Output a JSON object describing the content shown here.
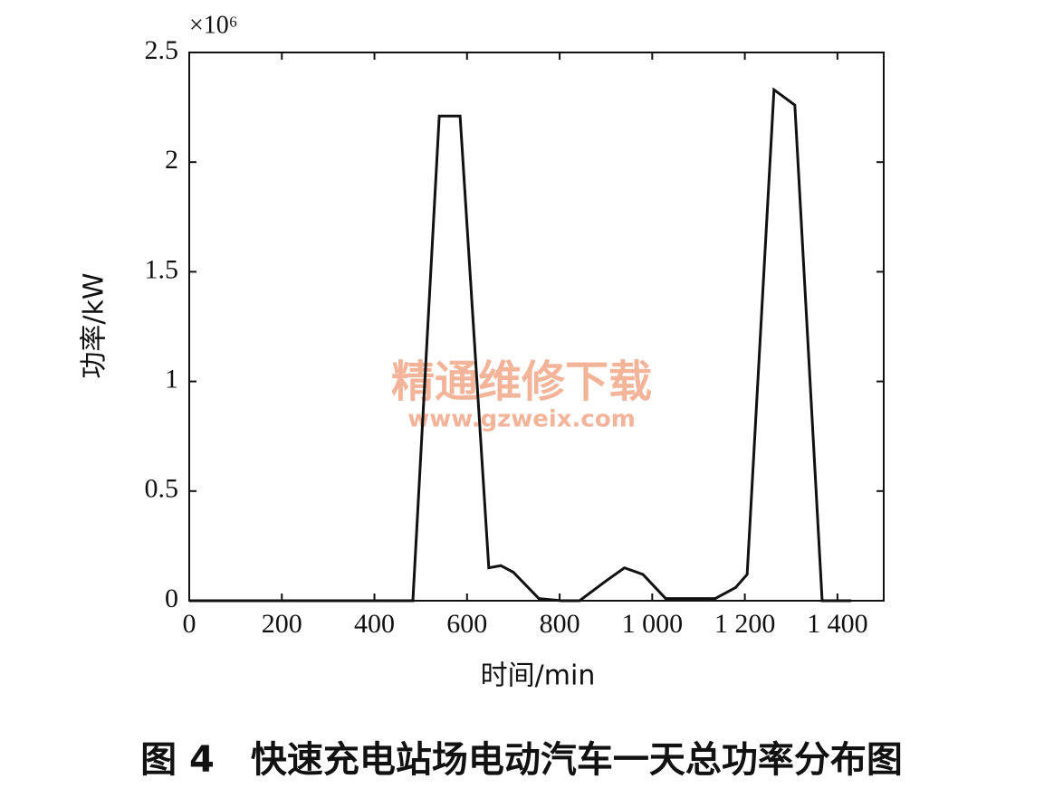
{
  "chart_data": {
    "type": "line",
    "title": "图 4　快速充电站场电动汽车一天总功率分布图",
    "x_label": "时间/min",
    "y_label": "功率/kW",
    "y_multiplier": "×10⁶",
    "watermark": [
      "精通维修下载",
      "www.gzweix.com"
    ],
    "xlim": [
      0,
      1500
    ],
    "ylim": [
      0,
      2.5
    ],
    "xticks": [
      0,
      200,
      400,
      600,
      800,
      {
        "value": 1000,
        "label": "1 000"
      },
      {
        "value": 1200,
        "label": "1 200"
      },
      {
        "value": 1400,
        "label": "1 400"
      }
    ],
    "yticks": [
      0,
      0.5,
      1,
      1.5,
      2,
      2.5
    ],
    "x": [
      0,
      483,
      540,
      585,
      647,
      673,
      700,
      755,
      804,
      843,
      900,
      940,
      980,
      1029,
      1136,
      1180,
      1205,
      1263,
      1308,
      1367,
      1430
    ],
    "series": [
      {
        "name": "功率",
        "color": "#111111",
        "values": [
          0,
          0,
          2.21,
          2.21,
          0.15,
          0.16,
          0.13,
          0.01,
          0,
          0,
          0.09,
          0.15,
          0.12,
          0.01,
          0.01,
          0.06,
          0.12,
          2.33,
          2.26,
          0,
          0
        ]
      }
    ]
  }
}
